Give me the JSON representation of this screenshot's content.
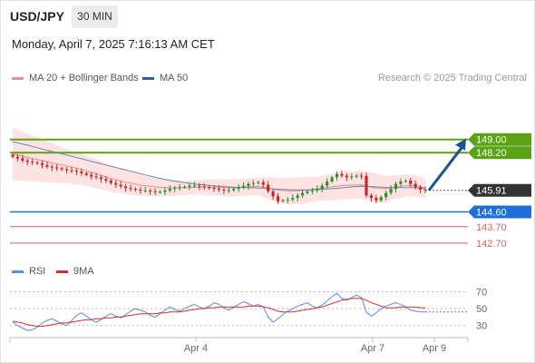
{
  "header": {
    "symbol": "USD/JPY",
    "timeframe": "30 MIN",
    "datetime": "Monday, April 7, 2025 7:16:13 AM CET"
  },
  "legend": {
    "ma20": "MA 20 + Bollinger Bands",
    "ma50": "MA 50",
    "research": "Research © 2025 Trading Central",
    "rsi": "RSI",
    "ma9": "9MA"
  },
  "colors": {
    "up": "#2f8f2f",
    "down": "#c62828",
    "ma20": "#f08a8a",
    "ma50": "#6a86b8",
    "band_fill": "#fde3e1",
    "resistance": "#5aa315",
    "pivot": "#1f6fd6",
    "support": "#e06060",
    "arrow": "#1f4f8f",
    "rsi": "#5b8ee6",
    "ma9": "#d32f2f"
  },
  "chart_data": [
    {
      "type": "candlestick",
      "price_range": [
        142.2,
        151.3
      ],
      "x_ticks": [
        "Apr 4",
        "Apr 7",
        "Apr 9"
      ],
      "current_price": 145.91,
      "levels": [
        {
          "value": 149.0,
          "label": "149.00",
          "kind": "resistance"
        },
        {
          "value": 148.2,
          "label": "148.20",
          "kind": "resistance"
        },
        {
          "value": 144.6,
          "label": "144.60",
          "kind": "pivot"
        },
        {
          "value": 143.7,
          "label": "143.70",
          "kind": "support"
        },
        {
          "value": 142.7,
          "label": "142.70",
          "kind": "support"
        }
      ],
      "forecast_target": 149.0,
      "close": [
        147.95,
        147.85,
        147.72,
        147.65,
        147.6,
        147.55,
        147.45,
        147.35,
        147.3,
        147.25,
        147.18,
        147.12,
        147.1,
        147.05,
        146.95,
        146.85,
        146.75,
        146.7,
        146.6,
        146.5,
        146.35,
        146.25,
        146.15,
        146.05,
        146.0,
        145.95,
        145.9,
        145.9,
        145.85,
        145.8,
        145.82,
        145.9,
        146.0,
        146.05,
        146.1,
        146.12,
        146.2,
        146.2,
        146.15,
        146.1,
        146.05,
        146.0,
        145.95,
        145.9,
        145.92,
        146.0,
        146.1,
        146.18,
        146.3,
        146.35,
        146.4,
        146.25,
        145.85,
        145.55,
        145.25,
        145.3,
        145.35,
        145.45,
        145.6,
        145.75,
        145.85,
        145.9,
        146.0,
        146.2,
        146.45,
        146.7,
        146.9,
        146.8,
        146.7,
        146.75,
        146.8,
        146.78,
        145.6,
        145.45,
        145.3,
        145.5,
        145.75,
        146.0,
        146.3,
        146.45,
        146.5,
        146.3,
        146.1,
        145.95,
        145.91
      ],
      "ma20": [
        148.1,
        148.05,
        147.98,
        147.9,
        147.85,
        147.78,
        147.72,
        147.65,
        147.58,
        147.5,
        147.45,
        147.4,
        147.32,
        147.25,
        147.18,
        147.1,
        147.0,
        146.92,
        146.82,
        146.72,
        146.62,
        146.55,
        146.48,
        146.4,
        146.35,
        146.28,
        146.22,
        146.18,
        146.15,
        146.12,
        146.1,
        146.08,
        146.06,
        146.06,
        146.07,
        146.07,
        146.08,
        146.09,
        146.1,
        146.1,
        146.1,
        146.09,
        146.08,
        146.07,
        146.06,
        146.06,
        146.08,
        146.1,
        146.12,
        146.14,
        146.15,
        146.12,
        146.05,
        145.98,
        145.92,
        145.9,
        145.88,
        145.87,
        145.88,
        145.9,
        145.93,
        145.96,
        146.0,
        146.04,
        146.08,
        146.12,
        146.16,
        146.2,
        146.22,
        146.22,
        146.23,
        146.24,
        146.18,
        146.1,
        146.05,
        146.02,
        146.02,
        146.05,
        146.1,
        146.15,
        146.2,
        146.2,
        146.18,
        146.12,
        146.05
      ],
      "ma50": [
        148.85,
        148.8,
        148.72,
        148.65,
        148.58,
        148.5,
        148.42,
        148.35,
        148.27,
        148.2,
        148.12,
        148.05,
        147.98,
        147.9,
        147.83,
        147.75,
        147.67,
        147.6,
        147.52,
        147.45,
        147.38,
        147.3,
        147.22,
        147.15,
        147.07,
        147.0,
        146.92,
        146.85,
        146.78,
        146.7,
        146.64,
        146.58,
        146.52,
        146.47,
        146.42,
        146.38,
        146.34,
        146.3,
        146.27,
        146.24,
        146.21,
        146.18,
        146.16,
        146.14,
        146.12,
        146.1,
        146.09,
        146.08,
        146.07,
        146.06,
        146.05,
        146.04,
        146.02,
        146.0,
        145.98,
        145.96,
        145.95,
        145.94,
        145.94,
        145.94,
        145.94,
        145.95,
        145.96,
        145.97,
        145.99,
        146.01,
        146.03,
        146.06,
        146.09,
        146.12,
        146.14,
        146.16,
        146.15,
        146.14,
        146.12,
        146.1,
        146.08,
        146.07,
        146.07,
        146.07,
        146.07,
        146.07,
        146.06,
        146.05,
        146.04
      ],
      "band_width": [
        1.6,
        1.55,
        1.5,
        1.45,
        1.4,
        1.35,
        1.3,
        1.25,
        1.2,
        1.15,
        1.1,
        1.05,
        1.0,
        0.98,
        0.95,
        0.92,
        0.9,
        0.88,
        0.85,
        0.82,
        0.8,
        0.78,
        0.75,
        0.72,
        0.7,
        0.68,
        0.65,
        0.62,
        0.6,
        0.58,
        0.55,
        0.52,
        0.5,
        0.48,
        0.46,
        0.44,
        0.44,
        0.44,
        0.45,
        0.46,
        0.48,
        0.5,
        0.52,
        0.52,
        0.52,
        0.52,
        0.52,
        0.52,
        0.52,
        0.52,
        0.55,
        0.6,
        0.65,
        0.7,
        0.75,
        0.78,
        0.8,
        0.82,
        0.82,
        0.82,
        0.8,
        0.78,
        0.75,
        0.75,
        0.78,
        0.82,
        0.85,
        0.85,
        0.85,
        0.85,
        0.85,
        0.85,
        0.88,
        0.9,
        0.9,
        0.85,
        0.8,
        0.75,
        0.72,
        0.7,
        0.68,
        0.66,
        0.64,
        0.62,
        0.6
      ]
    },
    {
      "type": "line",
      "name": "RSI panel",
      "ylim": [
        20,
        78
      ],
      "y_ticks": [
        70,
        50,
        30
      ],
      "series": [
        {
          "name": "RSI",
          "values": [
            34,
            30,
            27,
            24,
            25,
            28,
            33,
            36,
            38,
            35,
            32,
            30,
            36,
            42,
            45,
            41,
            37,
            34,
            37,
            41,
            44,
            41,
            39,
            43,
            47,
            50,
            48,
            46,
            42,
            40,
            44,
            48,
            52,
            49,
            47,
            50,
            53,
            55,
            52,
            50,
            53,
            57,
            55,
            51,
            48,
            52,
            55,
            58,
            56,
            53,
            55,
            52,
            40,
            34,
            38,
            43,
            47,
            50,
            53,
            55,
            57,
            53,
            51,
            54,
            59,
            64,
            68,
            62,
            60,
            63,
            66,
            63,
            46,
            41,
            45,
            50,
            53,
            55,
            57,
            55,
            52,
            48,
            47,
            46,
            46
          ]
        },
        {
          "name": "9MA",
          "values": [
            35,
            34,
            33,
            31,
            30,
            29,
            29,
            30,
            31,
            32,
            33,
            33,
            34,
            35,
            36,
            37,
            37,
            38,
            38,
            39,
            39,
            40,
            40,
            41,
            42,
            43,
            44,
            44,
            44,
            44,
            45,
            45,
            46,
            46,
            46,
            47,
            48,
            49,
            50,
            50,
            51,
            51,
            52,
            52,
            52,
            52,
            52,
            52,
            53,
            53,
            53,
            52,
            51,
            49,
            47,
            46,
            46,
            46,
            47,
            48,
            49,
            50,
            51,
            52,
            54,
            56,
            58,
            60,
            61,
            62,
            62,
            62,
            60,
            57,
            55,
            53,
            51,
            51,
            51,
            52,
            52,
            52,
            52,
            51,
            51
          ]
        }
      ]
    }
  ]
}
